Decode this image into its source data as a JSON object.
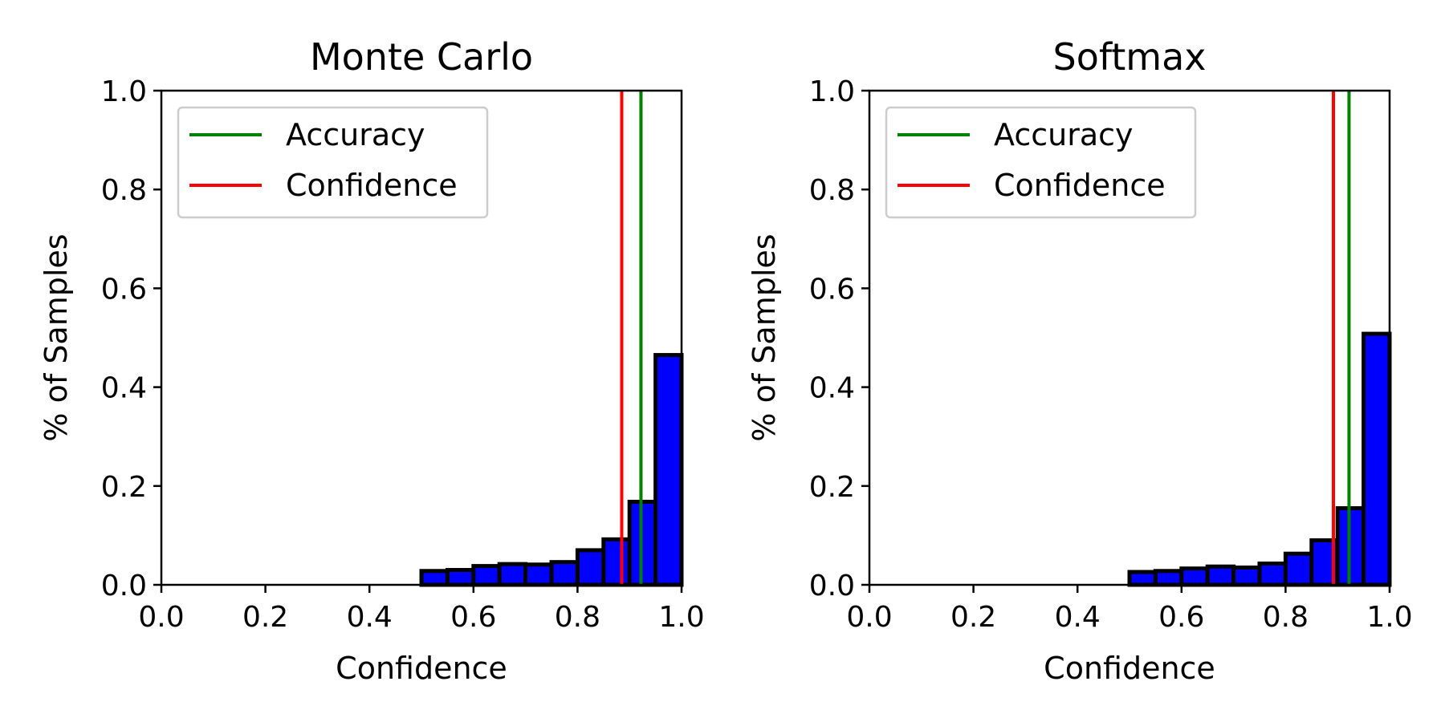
{
  "chart_data": [
    {
      "type": "bar",
      "title": "Monte Carlo",
      "xlabel": "Confidence",
      "ylabel": "% of Samples",
      "xlim": [
        0.0,
        1.0
      ],
      "ylim": [
        0.0,
        1.0
      ],
      "xticks": [
        "0.0",
        "0.2",
        "0.4",
        "0.6",
        "0.8",
        "1.0"
      ],
      "yticks": [
        "0.0",
        "0.2",
        "0.4",
        "0.6",
        "0.8",
        "1.0"
      ],
      "bin_edges": [
        0.0,
        0.05,
        0.1,
        0.15,
        0.2,
        0.25,
        0.3,
        0.35,
        0.4,
        0.45,
        0.5,
        0.55,
        0.6,
        0.65,
        0.7,
        0.75,
        0.8,
        0.85,
        0.9,
        0.95,
        1.0
      ],
      "values": [
        0.0,
        0.0,
        0.0,
        0.0,
        0.0,
        0.0,
        0.0,
        0.0,
        0.0,
        0.0,
        0.028,
        0.03,
        0.038,
        0.042,
        0.041,
        0.046,
        0.07,
        0.092,
        0.168,
        0.465
      ],
      "bar_color": "#0000ff",
      "edge_color": "#000000",
      "lines": [
        {
          "name": "Accuracy",
          "x": 0.922,
          "color": "#008000"
        },
        {
          "name": "Confidence",
          "x": 0.885,
          "color": "#ff0000"
        }
      ],
      "legend_position": "upper-left",
      "grid": false
    },
    {
      "type": "bar",
      "title": "Softmax",
      "xlabel": "Confidence",
      "ylabel": "% of Samples",
      "xlim": [
        0.0,
        1.0
      ],
      "ylim": [
        0.0,
        1.0
      ],
      "xticks": [
        "0.0",
        "0.2",
        "0.4",
        "0.6",
        "0.8",
        "1.0"
      ],
      "yticks": [
        "0.0",
        "0.2",
        "0.4",
        "0.6",
        "0.8",
        "1.0"
      ],
      "bin_edges": [
        0.0,
        0.05,
        0.1,
        0.15,
        0.2,
        0.25,
        0.3,
        0.35,
        0.4,
        0.45,
        0.5,
        0.55,
        0.6,
        0.65,
        0.7,
        0.75,
        0.8,
        0.85,
        0.9,
        0.95,
        1.0
      ],
      "values": [
        0.0,
        0.0,
        0.0,
        0.0,
        0.0,
        0.0,
        0.0,
        0.0,
        0.0,
        0.0,
        0.026,
        0.028,
        0.033,
        0.037,
        0.035,
        0.043,
        0.063,
        0.09,
        0.155,
        0.508
      ],
      "bar_color": "#0000ff",
      "edge_color": "#000000",
      "lines": [
        {
          "name": "Accuracy",
          "x": 0.922,
          "color": "#008000"
        },
        {
          "name": "Confidence",
          "x": 0.892,
          "color": "#ff0000"
        }
      ],
      "legend_position": "upper-left",
      "grid": false
    }
  ]
}
